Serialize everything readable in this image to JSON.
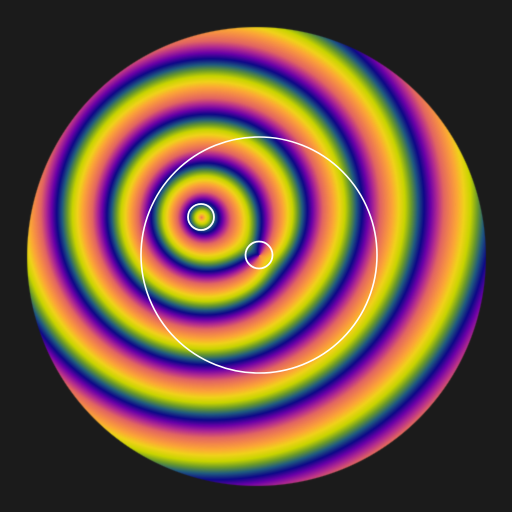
{
  "background_color": "#1b1b1b",
  "marker_color": "#ffffff",
  "colormap": "cyclic-plasma",
  "colormap_stops": [
    "#0d0887",
    "#6a00a8",
    "#b12a90",
    "#e16462",
    "#f2844b",
    "#fca636",
    "#f0d21a",
    "#c8d400",
    "#6a9a2a",
    "#1f5a80",
    "#0d0887"
  ],
  "markers": [
    {
      "name": "outer-ring-marker",
      "shape": "circle"
    },
    {
      "name": "small-ring-marker-left",
      "shape": "circle"
    },
    {
      "name": "small-ring-marker-center",
      "shape": "circle"
    }
  ]
}
